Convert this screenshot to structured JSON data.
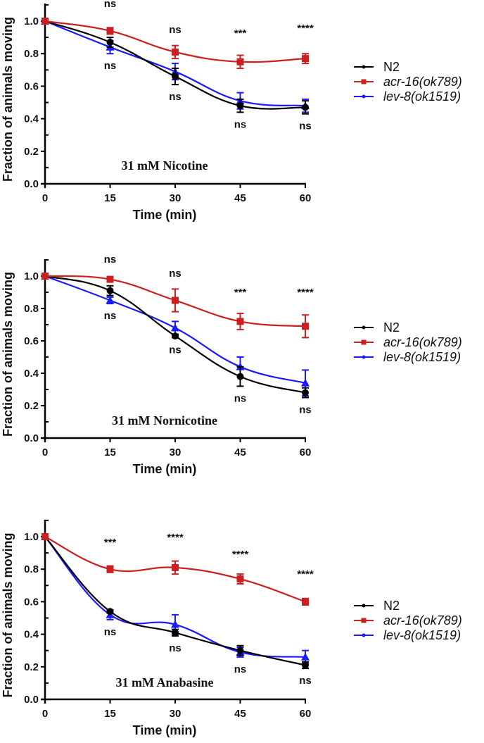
{
  "chart_data": [
    {
      "type": "line",
      "title": "31 mM Nicotine",
      "xlabel": "Time (min)",
      "ylabel": "Fraction of animals moving",
      "x": [
        0,
        15,
        30,
        45,
        60
      ],
      "xticks": [
        "0",
        "15",
        "30",
        "45",
        "60"
      ],
      "yticks": [
        "0.0",
        "0.2",
        "0.4",
        "0.6",
        "0.8",
        "1.0"
      ],
      "xlim": [
        0,
        60
      ],
      "ylim": [
        0,
        1.1
      ],
      "grid": false,
      "legend_position": "right",
      "series": [
        {
          "name": "N2",
          "color": "#000000",
          "marker": "circle",
          "values": [
            1.0,
            0.87,
            0.66,
            0.48,
            0.47
          ],
          "errors": [
            0,
            0.03,
            0.05,
            0.04,
            0.04
          ]
        },
        {
          "name": "acr-16(ok789)",
          "color": "#cc1f1f",
          "marker": "square",
          "values": [
            1.0,
            0.94,
            0.81,
            0.75,
            0.77
          ],
          "errors": [
            0,
            0.02,
            0.04,
            0.04,
            0.03
          ]
        },
        {
          "name": "lev-8(ok1519)",
          "color": "#1a1aff",
          "marker": "triangle",
          "values": [
            1.0,
            0.84,
            0.69,
            0.51,
            0.48
          ],
          "errors": [
            0,
            0.04,
            0.05,
            0.05,
            0.04
          ]
        }
      ],
      "annotations_top": [
        "ns",
        "ns",
        "***",
        "****"
      ],
      "annotations_bottom": [
        "ns",
        "ns",
        "ns",
        "ns"
      ]
    },
    {
      "type": "line",
      "title": "31 mM Nornicotine",
      "xlabel": "Time (min)",
      "ylabel": "Fraction of animals moving",
      "x": [
        0,
        15,
        30,
        45,
        60
      ],
      "xticks": [
        "0",
        "15",
        "30",
        "45",
        "60"
      ],
      "yticks": [
        "0.0",
        "0.2",
        "0.4",
        "0.6",
        "0.8",
        "1.0"
      ],
      "xlim": [
        0,
        60
      ],
      "ylim": [
        0,
        1.1
      ],
      "grid": false,
      "legend_position": "right",
      "series": [
        {
          "name": "N2",
          "color": "#000000",
          "marker": "circle",
          "values": [
            1.0,
            0.91,
            0.63,
            0.38,
            0.28
          ],
          "errors": [
            0,
            0.03,
            0.01,
            0.06,
            0.03
          ]
        },
        {
          "name": "acr-16(ok789)",
          "color": "#cc1f1f",
          "marker": "square",
          "values": [
            1.0,
            0.98,
            0.85,
            0.72,
            0.69
          ],
          "errors": [
            0,
            0.01,
            0.07,
            0.05,
            0.07
          ]
        },
        {
          "name": "lev-8(ok1519)",
          "color": "#1a1aff",
          "marker": "triangle",
          "values": [
            1.0,
            0.85,
            0.68,
            0.44,
            0.34
          ],
          "errors": [
            0,
            0.02,
            0.04,
            0.06,
            0.08
          ]
        }
      ],
      "annotations_top": [
        "ns",
        "ns",
        "***",
        "****"
      ],
      "annotations_bottom": [
        "ns",
        "ns",
        "ns",
        "ns"
      ]
    },
    {
      "type": "line",
      "title": "31 mM Anabasine",
      "xlabel": "Time (min)",
      "ylabel": "Fraction of animals moving",
      "x": [
        0,
        15,
        30,
        45,
        60
      ],
      "xticks": [
        "0",
        "15",
        "30",
        "45",
        "60"
      ],
      "yticks": [
        "0.0",
        "0.2",
        "0.4",
        "0.6",
        "0.8",
        "1.0"
      ],
      "xlim": [
        0,
        60
      ],
      "ylim": [
        0,
        1.1
      ],
      "grid": false,
      "legend_position": "right",
      "series": [
        {
          "name": "N2",
          "color": "#000000",
          "marker": "circle",
          "values": [
            1.0,
            0.54,
            0.41,
            0.3,
            0.21
          ],
          "errors": [
            0,
            0.01,
            0.02,
            0.03,
            0.02
          ]
        },
        {
          "name": "acr-16(ok789)",
          "color": "#cc1f1f",
          "marker": "square",
          "values": [
            1.0,
            0.8,
            0.81,
            0.74,
            0.6
          ],
          "errors": [
            0,
            0.02,
            0.04,
            0.03,
            0.02
          ]
        },
        {
          "name": "lev-8(ok1519)",
          "color": "#1a1aff",
          "marker": "triangle",
          "values": [
            1.0,
            0.52,
            0.46,
            0.29,
            0.26
          ],
          "errors": [
            0,
            0.03,
            0.06,
            0.03,
            0.04
          ]
        }
      ],
      "annotations_top": [
        "***",
        "****",
        "****",
        "****"
      ],
      "annotations_bottom": [
        "ns",
        "ns",
        "ns",
        "ns"
      ]
    }
  ]
}
